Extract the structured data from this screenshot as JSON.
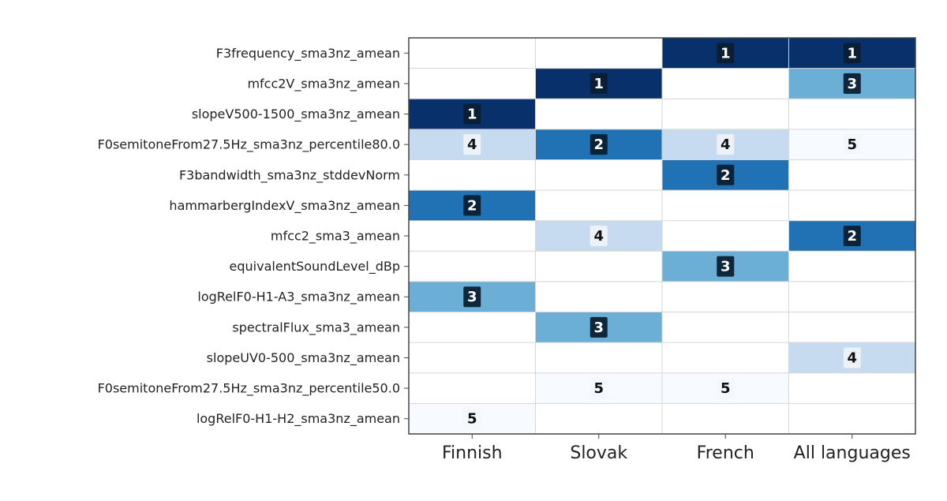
{
  "chart_data": {
    "type": "heatmap",
    "title": "",
    "xlabel": "",
    "ylabel": "",
    "columns": [
      "Finnish",
      "Slovak",
      "French",
      "All languages"
    ],
    "rows": [
      "F3frequency_sma3nz_amean",
      "mfcc2V_sma3nz_amean",
      "slopeV500-1500_sma3nz_amean",
      "F0semitoneFrom27.5Hz_sma3nz_percentile80.0",
      "F3bandwidth_sma3nz_stddevNorm",
      "hammarbergIndexV_sma3nz_amean",
      "mfcc2_sma3_amean",
      "equivalentSoundLevel_dBp",
      "logRelF0-H1-A3_sma3nz_amean",
      "spectralFlux_sma3_amean",
      "slopeUV0-500_sma3nz_amean",
      "F0semitoneFrom27.5Hz_sma3nz_percentile50.0",
      "logRelF0-H1-H2_sma3nz_amean"
    ],
    "ranks": [
      [
        null,
        null,
        1,
        1
      ],
      [
        null,
        1,
        null,
        3
      ],
      [
        1,
        null,
        null,
        null
      ],
      [
        4,
        2,
        4,
        5
      ],
      [
        null,
        null,
        2,
        null
      ],
      [
        2,
        null,
        null,
        null
      ],
      [
        null,
        4,
        null,
        2
      ],
      [
        null,
        null,
        3,
        null
      ],
      [
        3,
        null,
        null,
        null
      ],
      [
        null,
        3,
        null,
        null
      ],
      [
        null,
        null,
        null,
        4
      ],
      [
        null,
        5,
        5,
        null
      ],
      [
        5,
        null,
        null,
        null
      ]
    ],
    "colormap": {
      "1": "#08306b",
      "2": "#2171b5",
      "3": "#6baed6",
      "4": "#c6dbef",
      "5": "#f7fbff"
    },
    "grid": true,
    "legend": "none"
  }
}
